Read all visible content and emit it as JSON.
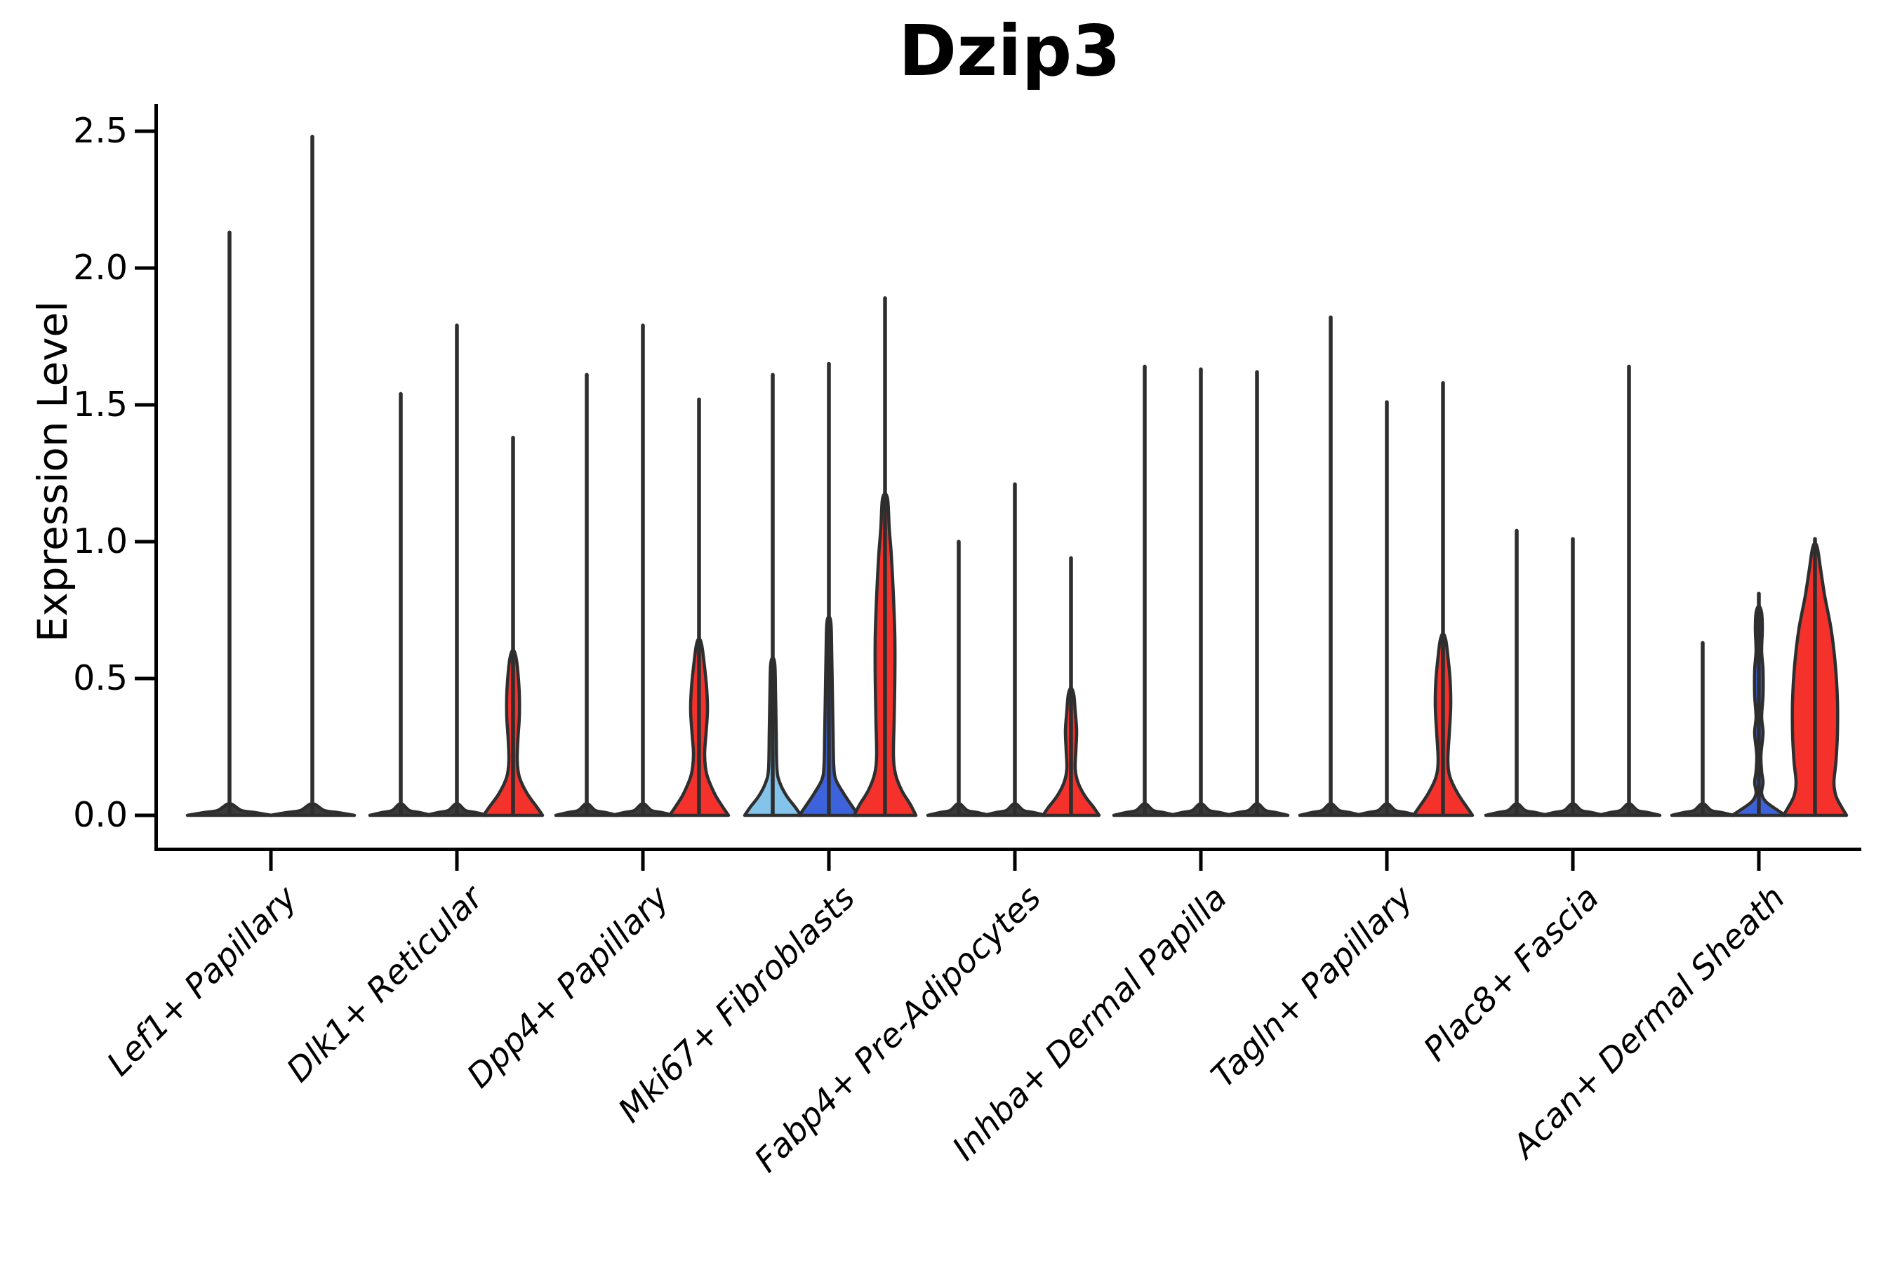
{
  "title": "Dzip3",
  "y_axis": {
    "label": "Expression Level",
    "tick_labels": [
      "0.0",
      "0.5",
      "1.0",
      "1.5",
      "2.0",
      "2.5"
    ]
  },
  "colors": {
    "red": "#f4312b",
    "blue": "#3c63dc",
    "lightblue": "#85c4ea",
    "outline": "#2e2e2e",
    "flat_fill": "#3a3a3a",
    "axis": "#000000"
  },
  "chart_data": {
    "type": "violin",
    "title": "Dzip3",
    "xlabel": "",
    "ylabel": "Expression Level",
    "ylim": [
      0,
      2.5
    ],
    "yticks": [
      0.0,
      0.5,
      1.0,
      1.5,
      2.0,
      2.5
    ],
    "grid": false,
    "legend": "none",
    "categories": [
      "Lef1+ Papillary",
      "Dlk1+ Reticular",
      "Dpp4+ Papillary",
      "Mki67+ Fibroblasts",
      "Fabp4+ Pre-Adipocytes",
      "Inhba+ Dermal Papilla",
      "Tagln+ Papillary",
      "Plac8+ Fascia",
      "Acan+ Dermal Sheath"
    ],
    "description": "Per category up to three narrow violins; most collapse to a flat bar at 0 with a thin spike to the max expression; colored bodies (lightblue/blue/red) appear where enough cells express Dzip3.",
    "violins": [
      {
        "category": "Lef1+ Papillary",
        "cells": [
          {
            "max": 2.13,
            "color": "none"
          },
          {
            "max": 2.48,
            "color": "none"
          }
        ]
      },
      {
        "category": "Dlk1+ Reticular",
        "cells": [
          {
            "max": 1.54,
            "color": "none"
          },
          {
            "max": 1.79,
            "color": "none"
          },
          {
            "max": 1.38,
            "color": "red",
            "profile": [
              [
                0,
                42
              ],
              [
                0.03,
                34
              ],
              [
                0.08,
                20
              ],
              [
                0.14,
                9
              ],
              [
                0.2,
                6
              ],
              [
                0.28,
                7
              ],
              [
                0.36,
                9
              ],
              [
                0.44,
                9
              ],
              [
                0.52,
                7
              ],
              [
                0.58,
                4
              ]
            ]
          }
        ]
      },
      {
        "category": "Dpp4+ Papillary",
        "cells": [
          {
            "max": 1.61,
            "color": "none"
          },
          {
            "max": 1.79,
            "color": "none"
          },
          {
            "max": 1.52,
            "color": "red",
            "profile": [
              [
                0,
                42
              ],
              [
                0.03,
                34
              ],
              [
                0.08,
                22
              ],
              [
                0.15,
                11
              ],
              [
                0.22,
                8
              ],
              [
                0.3,
                10
              ],
              [
                0.38,
                12
              ],
              [
                0.46,
                11
              ],
              [
                0.54,
                8
              ],
              [
                0.62,
                4
              ]
            ]
          }
        ]
      },
      {
        "category": "Mki67+ Fibroblasts",
        "cells": [
          {
            "max": 1.61,
            "color": "lightblue",
            "profile": [
              [
                0,
                40
              ],
              [
                0.03,
                32
              ],
              [
                0.07,
                20
              ],
              [
                0.12,
                10
              ],
              [
                0.17,
                6
              ],
              [
                0.3,
                5
              ],
              [
                0.45,
                4
              ],
              [
                0.55,
                3
              ]
            ]
          },
          {
            "max": 1.65,
            "color": "blue",
            "profile": [
              [
                0,
                42
              ],
              [
                0.03,
                34
              ],
              [
                0.08,
                21
              ],
              [
                0.13,
                10
              ],
              [
                0.18,
                7
              ],
              [
                0.3,
                6
              ],
              [
                0.45,
                5
              ],
              [
                0.6,
                4
              ],
              [
                0.7,
                3
              ]
            ]
          },
          {
            "max": 1.89,
            "color": "red",
            "profile": [
              [
                0,
                44
              ],
              [
                0.04,
                36
              ],
              [
                0.09,
                24
              ],
              [
                0.15,
                15
              ],
              [
                0.22,
                12
              ],
              [
                0.35,
                13
              ],
              [
                0.5,
                14
              ],
              [
                0.65,
                14
              ],
              [
                0.8,
                12
              ],
              [
                0.95,
                9
              ],
              [
                1.05,
                6
              ],
              [
                1.15,
                4
              ]
            ]
          }
        ]
      },
      {
        "category": "Fabp4+ Pre-Adipocytes",
        "cells": [
          {
            "max": 1.0,
            "color": "none"
          },
          {
            "max": 1.21,
            "color": "none"
          },
          {
            "max": 0.94,
            "color": "red",
            "profile": [
              [
                0,
                40
              ],
              [
                0.03,
                32
              ],
              [
                0.07,
                20
              ],
              [
                0.12,
                10
              ],
              [
                0.17,
                6
              ],
              [
                0.24,
                7
              ],
              [
                0.31,
                8
              ],
              [
                0.38,
                6
              ],
              [
                0.44,
                4
              ]
            ]
          }
        ]
      },
      {
        "category": "Inhba+ Dermal Papilla",
        "cells": [
          {
            "max": 1.64,
            "color": "none"
          },
          {
            "max": 1.63,
            "color": "none"
          },
          {
            "max": 1.62,
            "color": "none"
          }
        ]
      },
      {
        "category": "Tagln+ Papillary",
        "cells": [
          {
            "max": 1.82,
            "color": "none"
          },
          {
            "max": 1.51,
            "color": "none"
          },
          {
            "max": 1.58,
            "color": "red",
            "profile": [
              [
                0,
                42
              ],
              [
                0.03,
                34
              ],
              [
                0.08,
                21
              ],
              [
                0.14,
                10
              ],
              [
                0.2,
                7
              ],
              [
                0.3,
                9
              ],
              [
                0.4,
                11
              ],
              [
                0.5,
                10
              ],
              [
                0.58,
                7
              ],
              [
                0.64,
                4
              ]
            ]
          }
        ]
      },
      {
        "category": "Plac8+ Fascia",
        "cells": [
          {
            "max": 1.04,
            "color": "none"
          },
          {
            "max": 1.01,
            "color": "none"
          },
          {
            "max": 1.64,
            "color": "none"
          }
        ]
      },
      {
        "category": "Acan+ Dermal Sheath",
        "cells": [
          {
            "max": 0.63,
            "color": "none"
          },
          {
            "max": 0.81,
            "color": "blue",
            "profile": [
              [
                0,
                38
              ],
              [
                0.02,
                26
              ],
              [
                0.05,
                10
              ],
              [
                0.08,
                4
              ],
              [
                0.12,
                6
              ],
              [
                0.16,
                4
              ],
              [
                0.22,
                3
              ],
              [
                0.3,
                6
              ],
              [
                0.36,
                4
              ],
              [
                0.44,
                6
              ],
              [
                0.53,
                6
              ],
              [
                0.6,
                4
              ],
              [
                0.68,
                5
              ],
              [
                0.74,
                4
              ]
            ]
          },
          {
            "max": 1.01,
            "color": "red",
            "profile": [
              [
                0,
                45
              ],
              [
                0.03,
                38
              ],
              [
                0.07,
                30
              ],
              [
                0.12,
                27
              ],
              [
                0.2,
                30
              ],
              [
                0.3,
                32
              ],
              [
                0.42,
                32
              ],
              [
                0.55,
                29
              ],
              [
                0.68,
                23
              ],
              [
                0.8,
                14
              ],
              [
                0.9,
                8
              ],
              [
                0.97,
                4
              ]
            ]
          }
        ]
      }
    ]
  }
}
